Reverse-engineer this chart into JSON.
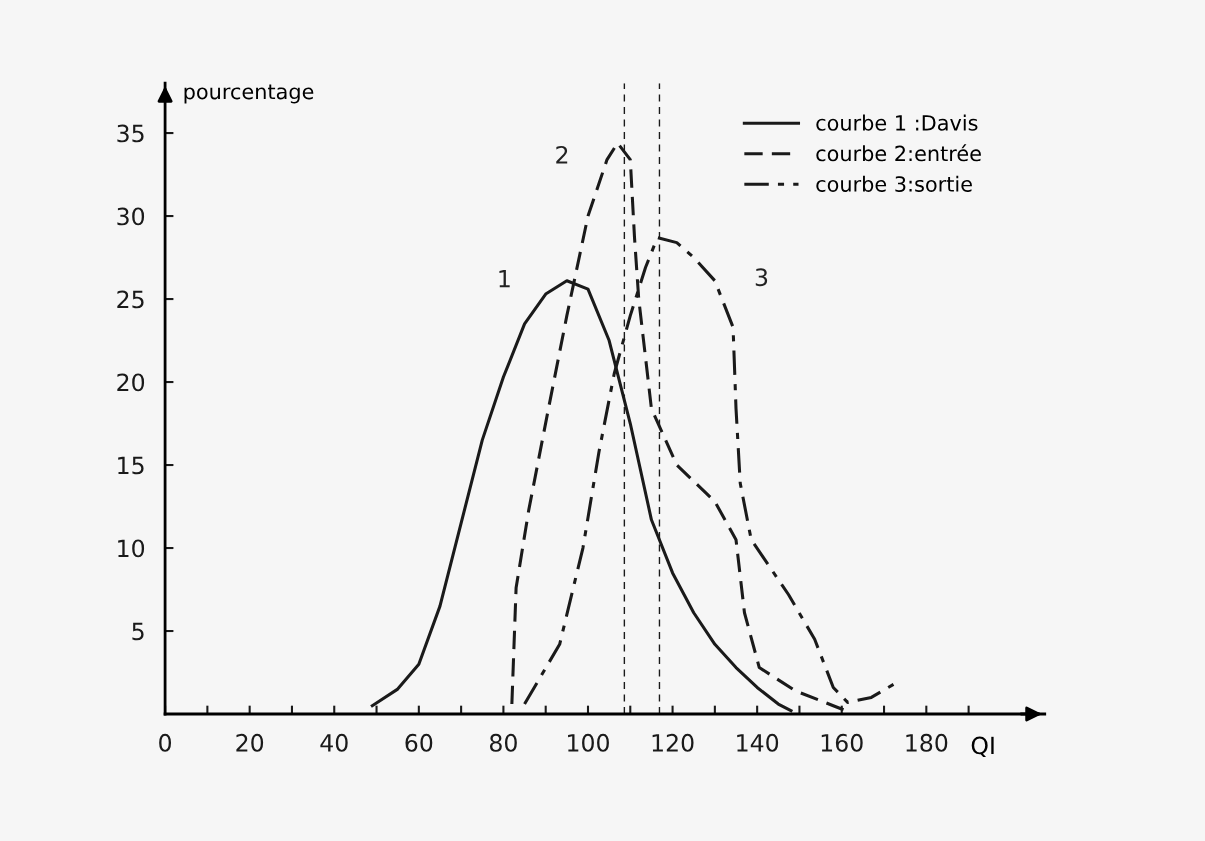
{
  "chart_data": {
    "type": "line",
    "xlabel": "QI",
    "ylabel": "pourcentage",
    "xlim": [
      0,
      208
    ],
    "ylim": [
      0,
      38
    ],
    "xticks": [
      0,
      {
        "value": 10,
        "label": null
      },
      20,
      {
        "value": 30,
        "label": null
      },
      40,
      {
        "value": 50,
        "label": null
      },
      60,
      {
        "value": 70,
        "label": null
      },
      80,
      {
        "value": 90,
        "label": null
      },
      100,
      {
        "value": 110,
        "label": null
      },
      120,
      {
        "value": 130,
        "label": null
      },
      140,
      {
        "value": 150,
        "label": null
      },
      160,
      {
        "value": 170,
        "label": null
      },
      180,
      {
        "value": 190,
        "label": null
      }
    ],
    "yticks": [
      5,
      10,
      15,
      20,
      25,
      30,
      35
    ],
    "grid": false,
    "legend": "top right",
    "marker": "none",
    "series": [
      {
        "name": "courbe 1 :Davis",
        "color": "#1a1a1a",
        "line_style": "solid",
        "x": [
          49,
          55,
          60,
          65,
          70,
          75,
          80,
          85,
          90,
          95,
          100,
          105,
          110,
          115,
          120,
          125,
          130,
          135,
          140,
          145,
          148
        ],
        "values": [
          0.5,
          1.5,
          3.0,
          6.5,
          11.5,
          16.5,
          20.3,
          23.5,
          25.3,
          26.1,
          25.6,
          22.5,
          17.5,
          11.7,
          8.5,
          6.1,
          4.2,
          2.8,
          1.6,
          0.6,
          0.2
        ]
      },
      {
        "name": "courbe 2:entrée",
        "color": "#1a1a1a",
        "line_style": "dashed",
        "x": [
          82,
          83,
          86,
          90.5,
          95,
          100,
          104.5,
          107,
          110,
          111,
          112,
          113,
          115,
          121,
          130,
          135,
          137,
          140.5,
          149,
          158,
          161
        ],
        "values": [
          0.6,
          7.6,
          12.3,
          18.2,
          24,
          30,
          33.4,
          34.4,
          33.4,
          28.7,
          25,
          22.8,
          18.4,
          15,
          12.8,
          10.5,
          6.1,
          2.8,
          1.4,
          0.5,
          0.2
        ]
      },
      {
        "name": "courbe 3:sortie",
        "color": "#1a1a1a",
        "line_style": "dashdot",
        "x": [
          85,
          93.3,
          98.8,
          102.6,
          106.2,
          110,
          113.6,
          116.4,
          121,
          125,
          130,
          134.3,
          135,
          136,
          138.6,
          147.4,
          153.6,
          158,
          161.4,
          167,
          173
        ],
        "values": [
          0.6,
          4.2,
          10,
          15.8,
          20.5,
          24,
          26.9,
          28.7,
          28.4,
          27.5,
          26.1,
          23.3,
          18.4,
          13.9,
          10.5,
          7.2,
          4.5,
          1.6,
          0.7,
          1.0,
          1.9
        ]
      }
    ],
    "ref_lines": [
      {
        "axis": "x",
        "value": 108.6,
        "color": "#1a1a1a",
        "line_style": "dashed"
      },
      {
        "axis": "x",
        "value": 116.9,
        "color": "#1a1a1a",
        "line_style": "dashed"
      }
    ],
    "annotations": [
      "1",
      "2",
      "3"
    ]
  }
}
